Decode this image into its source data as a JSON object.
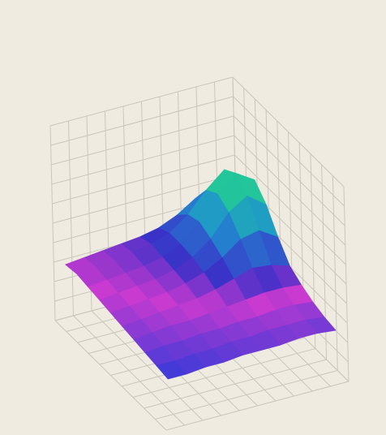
{
  "chart_data": {
    "type": "surface",
    "zlim": [
      0,
      10
    ],
    "z": [
      [
        3.0,
        3.1,
        3.2,
        3.3,
        3.4,
        3.6,
        4.0,
        4.6,
        5.0,
        4.5
      ],
      [
        3.1,
        3.2,
        3.3,
        3.4,
        3.6,
        3.9,
        4.6,
        5.6,
        6.4,
        5.8
      ],
      [
        3.0,
        3.1,
        3.2,
        3.3,
        3.5,
        3.9,
        4.8,
        6.0,
        6.8,
        6.2
      ],
      [
        2.9,
        3.0,
        3.1,
        3.2,
        3.4,
        3.8,
        4.5,
        5.6,
        6.2,
        5.5
      ],
      [
        2.8,
        2.9,
        3.0,
        3.1,
        3.3,
        3.6,
        4.1,
        4.8,
        5.0,
        4.4
      ],
      [
        2.7,
        2.8,
        2.9,
        3.0,
        3.1,
        3.3,
        3.6,
        3.9,
        3.8,
        3.5
      ],
      [
        2.6,
        2.7,
        2.8,
        2.8,
        2.9,
        3.0,
        3.1,
        3.2,
        3.2,
        3.1
      ],
      [
        2.5,
        2.6,
        2.6,
        2.7,
        2.7,
        2.8,
        2.8,
        2.9,
        2.9,
        2.8
      ],
      [
        2.4,
        2.4,
        2.5,
        2.5,
        2.6,
        2.6,
        2.7,
        2.7,
        2.7,
        2.6
      ],
      [
        2.3,
        2.3,
        2.4,
        2.4,
        2.5,
        2.5,
        2.5,
        2.6,
        2.6,
        2.5
      ]
    ],
    "colorscale": [
      [
        2.3,
        "#3a3ad8"
      ],
      [
        3.0,
        "#c83ad0"
      ],
      [
        3.6,
        "#3a30c8"
      ],
      [
        5.0,
        "#2090d0"
      ],
      [
        6.0,
        "#20c0a0"
      ],
      [
        7.0,
        "#30e080"
      ]
    ],
    "grid": true
  }
}
